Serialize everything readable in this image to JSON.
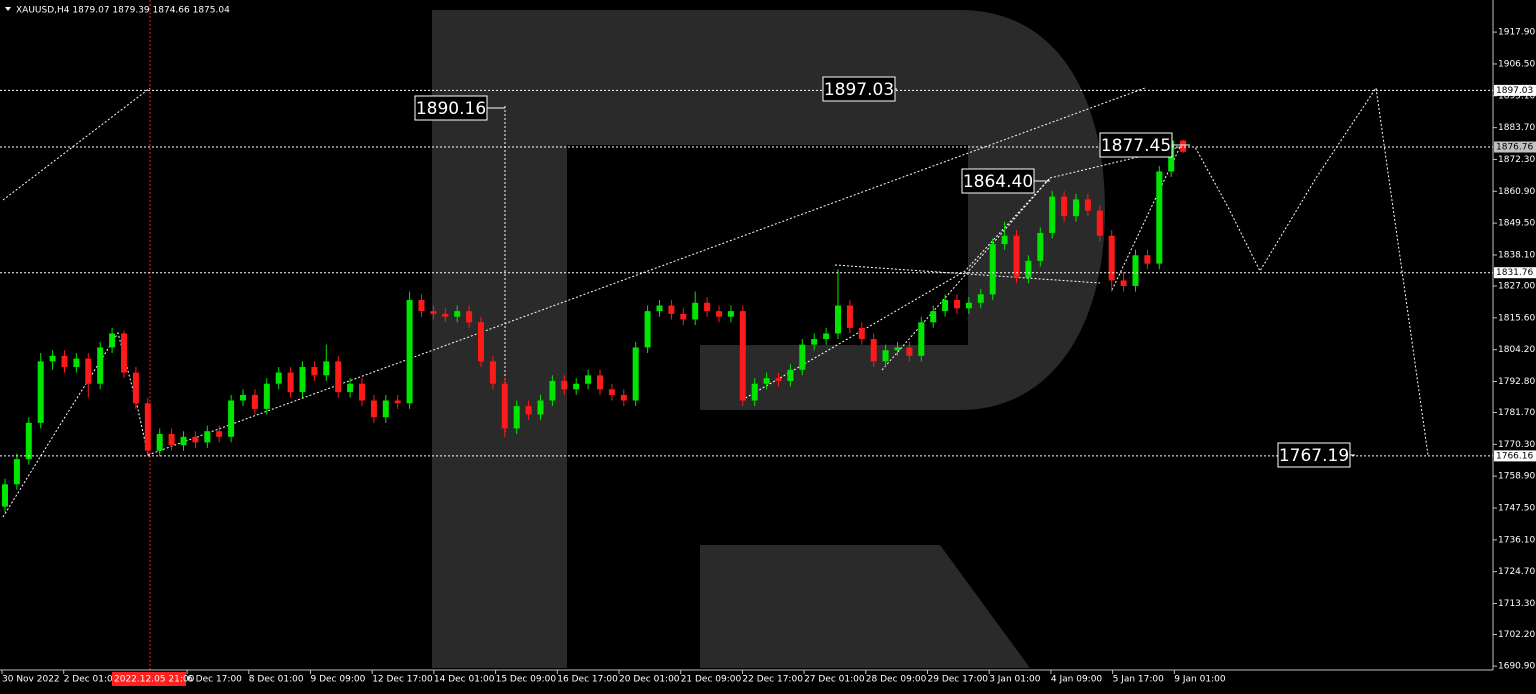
{
  "chart_data": {
    "type": "candlestick",
    "title": "XAUUSD,H4 1879.07 1879.39 1874.66 1875.04",
    "up_color": "#00e600",
    "down_color": "#ff1a1a",
    "ylim": [
      1689.5,
      1929.4
    ],
    "yticks": [
      {
        "value": 1917.9,
        "label": "1917.90"
      },
      {
        "value": 1906.5,
        "label": "1906.50"
      },
      {
        "value": 1895.1,
        "label": "1895.10"
      },
      {
        "value": 1883.7,
        "label": "1883.70"
      },
      {
        "value": 1872.3,
        "label": "1872.30"
      },
      {
        "value": 1860.9,
        "label": "1860.90"
      },
      {
        "value": 1849.5,
        "label": "1849.50"
      },
      {
        "value": 1838.1,
        "label": "1838.10"
      },
      {
        "value": 1827,
        "label": "1827.00"
      },
      {
        "value": 1815.6,
        "label": "1815.60"
      },
      {
        "value": 1804.2,
        "label": "1804.20"
      },
      {
        "value": 1792.8,
        "label": "1792.80"
      },
      {
        "value": 1781.7,
        "label": "1781.70"
      },
      {
        "value": 1770.3,
        "label": "1770.30"
      },
      {
        "value": 1758.9,
        "label": "1758.90"
      },
      {
        "value": 1747.5,
        "label": "1747.50"
      },
      {
        "value": 1736.1,
        "label": "1736.10"
      },
      {
        "value": 1724.7,
        "label": "1724.70"
      },
      {
        "value": 1713.3,
        "label": "1713.30"
      },
      {
        "value": 1702.2,
        "label": "1702.20"
      },
      {
        "value": 1690.9,
        "label": "1690.90"
      }
    ],
    "xlabels": [
      "30 Nov 2022",
      "2 Dec 01:00",
      "6 Dec 17:00",
      "8 Dec 01:00",
      "9 Dec 09:00",
      "12 Dec 17:00",
      "14 Dec 01:00",
      "15 Dec 09:00",
      "16 Dec 17:00",
      "20 Dec 01:00",
      "21 Dec 09:00",
      "22 Dec 17:00",
      "27 Dec 01:00",
      "28 Dec 09:00",
      "29 Dec 17:00",
      "3 Jan 01:00",
      "4 Jan 09:00",
      "5 Jan 17:00",
      "9 Jan 01:00"
    ],
    "cursor_label": "2022.12.05 21:00",
    "levels": [
      1897.03,
      1876.76,
      1831.76,
      1766.16
    ],
    "annotations": [
      "1890.16",
      "1897.03",
      "1877.45",
      "1864.40",
      "1767.19"
    ],
    "candles": [
      [
        1748,
        1758,
        1746,
        1756
      ],
      [
        1756,
        1767,
        1754,
        1765
      ],
      [
        1765,
        1780,
        1763,
        1778
      ],
      [
        1778,
        1803,
        1776,
        1800
      ],
      [
        1800,
        1804,
        1797,
        1802
      ],
      [
        1802,
        1804,
        1796,
        1798
      ],
      [
        1798,
        1803,
        1796,
        1801
      ],
      [
        1801,
        1803,
        1787,
        1792
      ],
      [
        1792,
        1807,
        1790,
        1805
      ],
      [
        1805,
        1812,
        1803,
        1810
      ],
      [
        1810,
        1811,
        1794,
        1796
      ],
      [
        1796,
        1798,
        1783,
        1785
      ],
      [
        1785,
        1787,
        1766,
        1768
      ],
      [
        1768,
        1776,
        1766,
        1774
      ],
      [
        1774,
        1776,
        1768,
        1770
      ],
      [
        1770,
        1775,
        1768,
        1773
      ],
      [
        1773,
        1775,
        1769,
        1771
      ],
      [
        1771,
        1777,
        1769,
        1775
      ],
      [
        1775,
        1777,
        1771,
        1773
      ],
      [
        1773,
        1788,
        1771,
        1786
      ],
      [
        1786,
        1790,
        1784,
        1788
      ],
      [
        1788,
        1790,
        1781,
        1783
      ],
      [
        1783,
        1794,
        1781,
        1792
      ],
      [
        1792,
        1798,
        1790,
        1796
      ],
      [
        1796,
        1798,
        1787,
        1789
      ],
      [
        1789,
        1800,
        1787,
        1798
      ],
      [
        1798,
        1800,
        1793,
        1795
      ],
      [
        1795,
        1806,
        1793,
        1800
      ],
      [
        1800,
        1802,
        1787,
        1789
      ],
      [
        1789,
        1794,
        1787,
        1792
      ],
      [
        1792,
        1794,
        1784,
        1786
      ],
      [
        1786,
        1788,
        1778,
        1780
      ],
      [
        1780,
        1788,
        1778,
        1786
      ],
      [
        1786,
        1788,
        1783,
        1785
      ],
      [
        1785,
        1825,
        1783,
        1822
      ],
      [
        1822,
        1824,
        1816,
        1818
      ],
      [
        1818,
        1820,
        1815,
        1817
      ],
      [
        1817,
        1819,
        1814,
        1816
      ],
      [
        1816,
        1820,
        1814,
        1818
      ],
      [
        1818,
        1820,
        1812,
        1814
      ],
      [
        1814,
        1816,
        1798,
        1800
      ],
      [
        1800,
        1802,
        1790,
        1792
      ],
      [
        1792,
        1794,
        1773,
        1776
      ],
      [
        1776,
        1786,
        1774,
        1784
      ],
      [
        1784,
        1786,
        1779,
        1781
      ],
      [
        1781,
        1788,
        1779,
        1786
      ],
      [
        1786,
        1795,
        1784,
        1793
      ],
      [
        1793,
        1795,
        1788,
        1790
      ],
      [
        1790,
        1794,
        1788,
        1792
      ],
      [
        1792,
        1797,
        1790,
        1795
      ],
      [
        1795,
        1797,
        1788,
        1790
      ],
      [
        1790,
        1792,
        1786,
        1788
      ],
      [
        1788,
        1790,
        1784,
        1786
      ],
      [
        1786,
        1807,
        1784,
        1805
      ],
      [
        1805,
        1820,
        1803,
        1818
      ],
      [
        1818,
        1822,
        1816,
        1820
      ],
      [
        1820,
        1822,
        1815,
        1817
      ],
      [
        1817,
        1819,
        1813,
        1815
      ],
      [
        1815,
        1825,
        1813,
        1821
      ],
      [
        1821,
        1823,
        1816,
        1818
      ],
      [
        1818,
        1820,
        1814,
        1816
      ],
      [
        1816,
        1820,
        1814,
        1818
      ],
      [
        1818,
        1820,
        1784,
        1786
      ],
      [
        1786,
        1794,
        1784,
        1792
      ],
      [
        1792,
        1796,
        1790,
        1794
      ],
      [
        1794,
        1796,
        1791,
        1793
      ],
      [
        1793,
        1799,
        1791,
        1797
      ],
      [
        1797,
        1808,
        1795,
        1806
      ],
      [
        1806,
        1810,
        1804,
        1808
      ],
      [
        1808,
        1812,
        1806,
        1810
      ],
      [
        1810,
        1833,
        1808,
        1820
      ],
      [
        1820,
        1822,
        1810,
        1812
      ],
      [
        1812,
        1814,
        1806,
        1808
      ],
      [
        1808,
        1810,
        1798,
        1800
      ],
      [
        1800,
        1806,
        1798,
        1804
      ],
      [
        1804,
        1807,
        1802,
        1805
      ],
      [
        1805,
        1807,
        1800,
        1802
      ],
      [
        1802,
        1816,
        1800,
        1814
      ],
      [
        1814,
        1820,
        1812,
        1818
      ],
      [
        1818,
        1824,
        1816,
        1822
      ],
      [
        1822,
        1824,
        1817,
        1819
      ],
      [
        1819,
        1823,
        1817,
        1821
      ],
      [
        1821,
        1826,
        1819,
        1824
      ],
      [
        1824,
        1844,
        1822,
        1842
      ],
      [
        1842,
        1850,
        1840,
        1845
      ],
      [
        1845,
        1847,
        1828,
        1830
      ],
      [
        1830,
        1838,
        1828,
        1836
      ],
      [
        1836,
        1848,
        1834,
        1846
      ],
      [
        1846,
        1861,
        1844,
        1859
      ],
      [
        1859,
        1861,
        1850,
        1852
      ],
      [
        1852,
        1860,
        1850,
        1858
      ],
      [
        1858,
        1860,
        1852,
        1854
      ],
      [
        1854,
        1856,
        1843,
        1845
      ],
      [
        1845,
        1847,
        1825,
        1829
      ],
      [
        1829,
        1832,
        1825,
        1827
      ],
      [
        1827,
        1840,
        1825,
        1838
      ],
      [
        1838,
        1840,
        1833,
        1835
      ],
      [
        1835,
        1870,
        1833,
        1868
      ],
      [
        1868,
        1881,
        1866,
        1879.07
      ],
      [
        1879.07,
        1879.39,
        1874.66,
        1875.04
      ]
    ]
  }
}
